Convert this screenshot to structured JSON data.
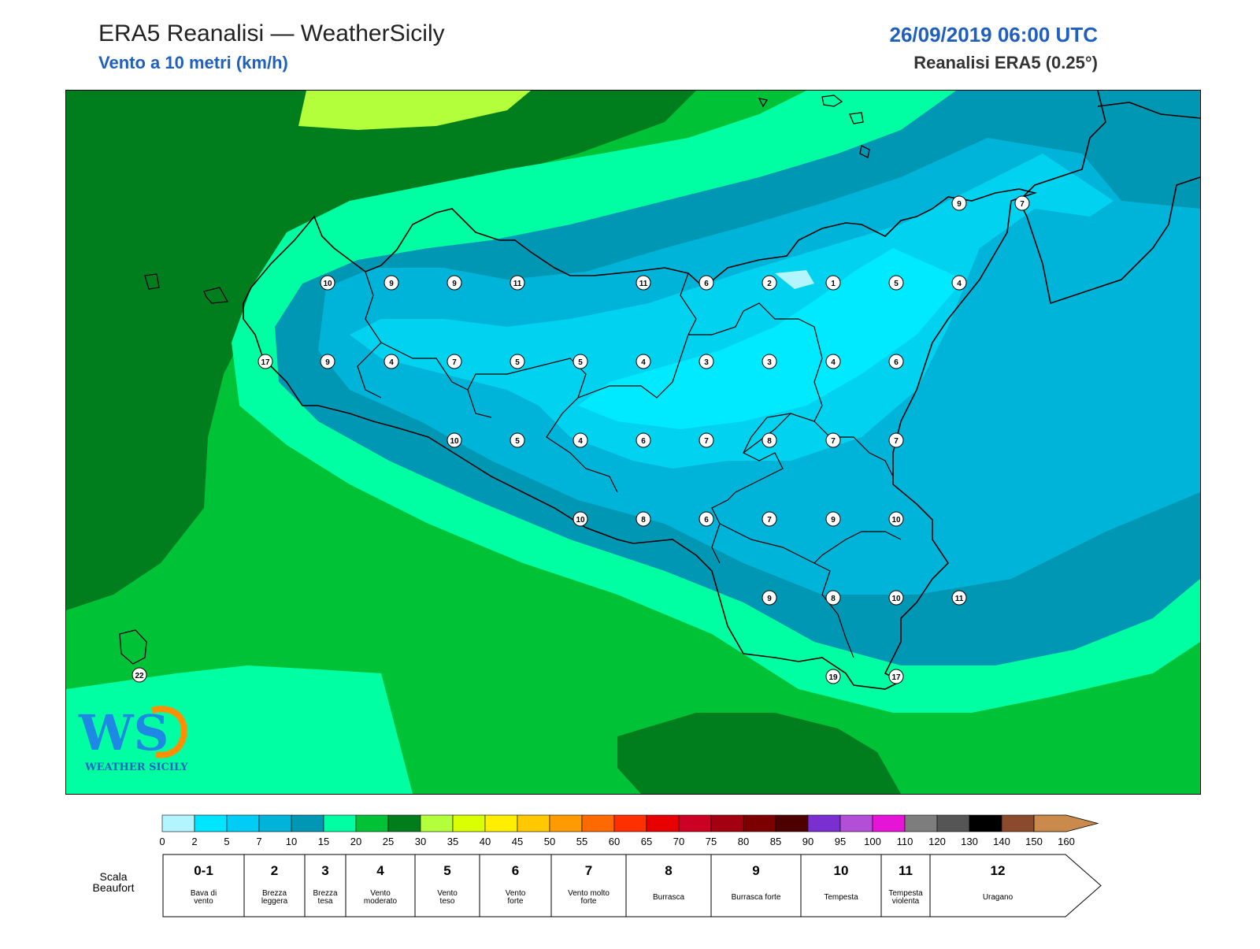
{
  "header": {
    "title": "ERA5 Reanalisi — WeatherSicily",
    "subtitle": "Vento a 10 metri (km/h)",
    "datetime": "26/09/2019 06:00 UTC",
    "source": "Reanalisi ERA5 (0.25°)"
  },
  "logo": {
    "mark": "WS",
    "text": "WEATHER SICILY"
  },
  "map": {
    "colors": {
      "sea_far": "#00c236",
      "dark_green": "#007e1d",
      "light_green_yellow": "#b4ff3c",
      "aqua": "#00ffa2",
      "teal": "#0097b5",
      "blue": "#00b4d9",
      "light_blue": "#00d2f0",
      "lightest_blue": "#00eaff",
      "palest_blue": "#b3f5ff"
    },
    "wind_markers": [
      "10",
      "9",
      "9",
      "11",
      "11",
      "6",
      "2",
      "1",
      "5",
      "4",
      "9",
      "7",
      "17",
      "9",
      "4",
      "7",
      "5",
      "5",
      "4",
      "3",
      "3",
      "4",
      "6",
      "10",
      "5",
      "4",
      "6",
      "7",
      "8",
      "7",
      "7",
      "10",
      "8",
      "6",
      "7",
      "9",
      "10",
      "9",
      "8",
      "10",
      "11",
      "19",
      "17",
      "22"
    ]
  },
  "legend": {
    "colorbar_ticks": [
      "0",
      "2",
      "5",
      "7",
      "10",
      "15",
      "20",
      "25",
      "30",
      "35",
      "40",
      "45",
      "50",
      "55",
      "60",
      "65",
      "70",
      "75",
      "80",
      "85",
      "90",
      "95",
      "100",
      "110",
      "120",
      "130",
      "140",
      "150",
      "160"
    ],
    "colorbar_colors": [
      "#b3f5ff",
      "#00e5ff",
      "#00cdf5",
      "#00b4d9",
      "#0097b5",
      "#00ffa2",
      "#00c236",
      "#007e1d",
      "#b4ff3c",
      "#d9ff00",
      "#ffee00",
      "#ffc800",
      "#ff9a00",
      "#ff6a00",
      "#ff3000",
      "#e60000",
      "#cc0022",
      "#a30011",
      "#7d0000",
      "#4d0000",
      "#7a2fd1",
      "#b34fd6",
      "#e614d6",
      "#7d7d7d",
      "#555555",
      "#000000",
      "#8b4a2b",
      "#c98a4b"
    ],
    "beaufort_title": "Scala Beaufort",
    "beaufort": [
      {
        "num": "0-1",
        "label": "Bava di vento"
      },
      {
        "num": "2",
        "label": "Brezza leggera"
      },
      {
        "num": "3",
        "label": "Brezza tesa"
      },
      {
        "num": "4",
        "label": "Vento moderato"
      },
      {
        "num": "5",
        "label": "Vento teso"
      },
      {
        "num": "6",
        "label": "Vento forte"
      },
      {
        "num": "7",
        "label": "Vento molto forte"
      },
      {
        "num": "8",
        "label": "Burrasca"
      },
      {
        "num": "9",
        "label": "Burrasca forte"
      },
      {
        "num": "10",
        "label": "Tempesta"
      },
      {
        "num": "11",
        "label": "Tempesta violenta"
      },
      {
        "num": "12",
        "label": "Uragano"
      }
    ]
  }
}
